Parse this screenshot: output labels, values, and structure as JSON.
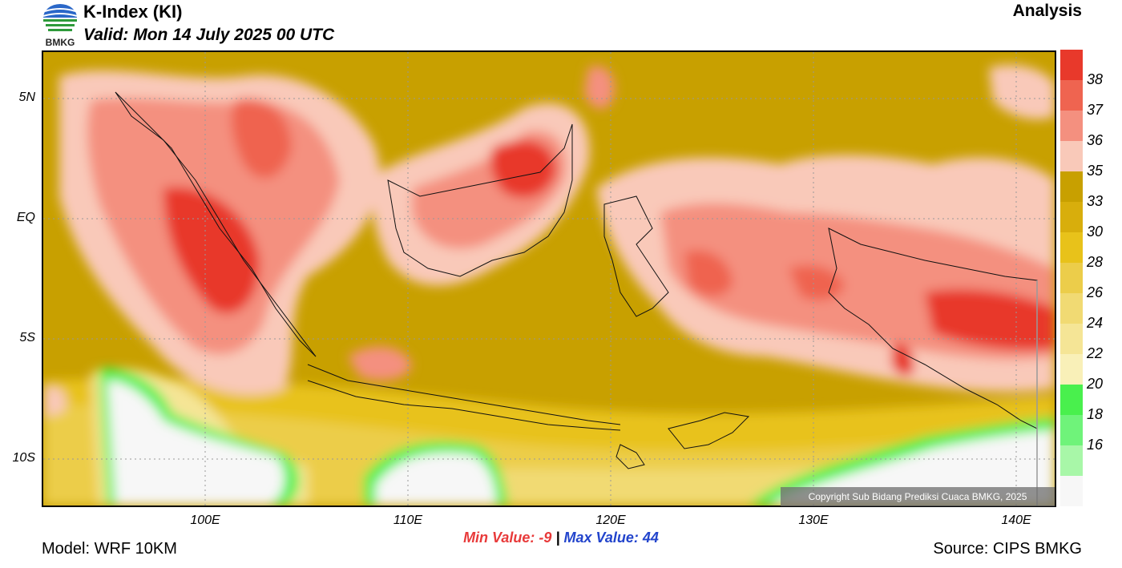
{
  "header": {
    "title": "K-Index (KI)",
    "valid": "Valid: Mon 14 July 2025 00 UTC",
    "run_type": "Analysis",
    "logo_text": "BMKG"
  },
  "map": {
    "lat_labels": [
      "5N",
      "EQ",
      "5S",
      "10S"
    ],
    "lon_labels": [
      "100E",
      "110E",
      "120E",
      "130E",
      "140E"
    ],
    "copyright": "Copyright Sub Bidang Prediksi Cuaca BMKG, 2025"
  },
  "stats": {
    "min_label": "Min Value:",
    "min_value": "-9",
    "separator": "|",
    "max_label": "Max Value:",
    "max_value": "44"
  },
  "footer": {
    "model": "Model: WRF 10KM",
    "source": "Source: CIPS BMKG"
  },
  "legend": {
    "labels": [
      "38",
      "37",
      "36",
      "35",
      "33",
      "30",
      "28",
      "26",
      "24",
      "22",
      "20",
      "18",
      "16"
    ],
    "colors": [
      "#e8392b",
      "#ef6450",
      "#f4907f",
      "#f9c9b9",
      "#c8a000",
      "#d8ae0c",
      "#e8c21a",
      "#eccd4a",
      "#f1da73",
      "#f5e596",
      "#f9f0b8",
      "#49f04d",
      "#6ff37a",
      "#a8f7a8",
      "#f7f7f7"
    ]
  }
}
